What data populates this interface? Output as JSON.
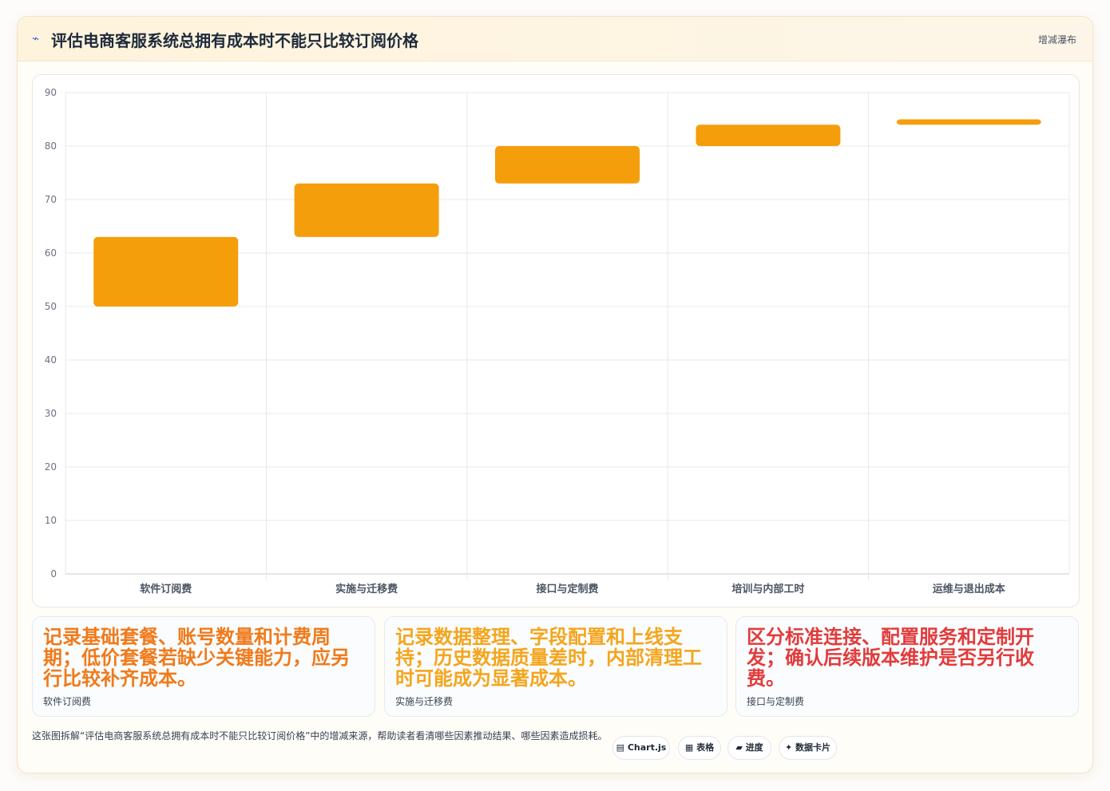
{
  "header": {
    "icon": "⌁",
    "title": "评估电商客服系统总拥有成本时不能只比较订阅价格",
    "badge": "增减瀑布"
  },
  "chart_data": {
    "type": "bar",
    "subtype": "waterfall",
    "categories": [
      "软件订阅费",
      "实施与迁移费",
      "接口与定制费",
      "培训与内部工时",
      "运维与退出成本"
    ],
    "ranges": [
      [
        50,
        63
      ],
      [
        63,
        73
      ],
      [
        73,
        80
      ],
      [
        80,
        84
      ],
      [
        84,
        85
      ]
    ],
    "yticks": [
      0,
      10,
      20,
      30,
      40,
      50,
      60,
      70,
      80,
      90
    ],
    "ylim": [
      0,
      90
    ],
    "bar_color": "#f59e0b",
    "grid": true
  },
  "notes": [
    {
      "text": "记录基础套餐、账号数量和计费周期；低价套餐若缺少关键能力，应另行比较补齐成本。",
      "label": "软件订阅费",
      "color": "#f07a1a"
    },
    {
      "text": "记录数据整理、字段配置和上线支持；历史数据质量差时，内部清理工时可能成为显著成本。",
      "label": "实施与迁移费",
      "color": "#f4a51c"
    },
    {
      "text": "区分标准连接、配置服务和定制开发；确认后续版本维护是否另行收费。",
      "label": "接口与定制费",
      "color": "#e23b3b"
    }
  ],
  "footer": {
    "description": "这张图拆解“评估电商客服系统总拥有成本时不能只比较订阅价格”中的增减来源，帮助读者看清哪些因素推动结果、哪些因素造成损耗。",
    "pills": [
      "▤ Chart.js",
      "▦ 表格",
      "▰ 进度",
      "✦ 数据卡片"
    ]
  }
}
